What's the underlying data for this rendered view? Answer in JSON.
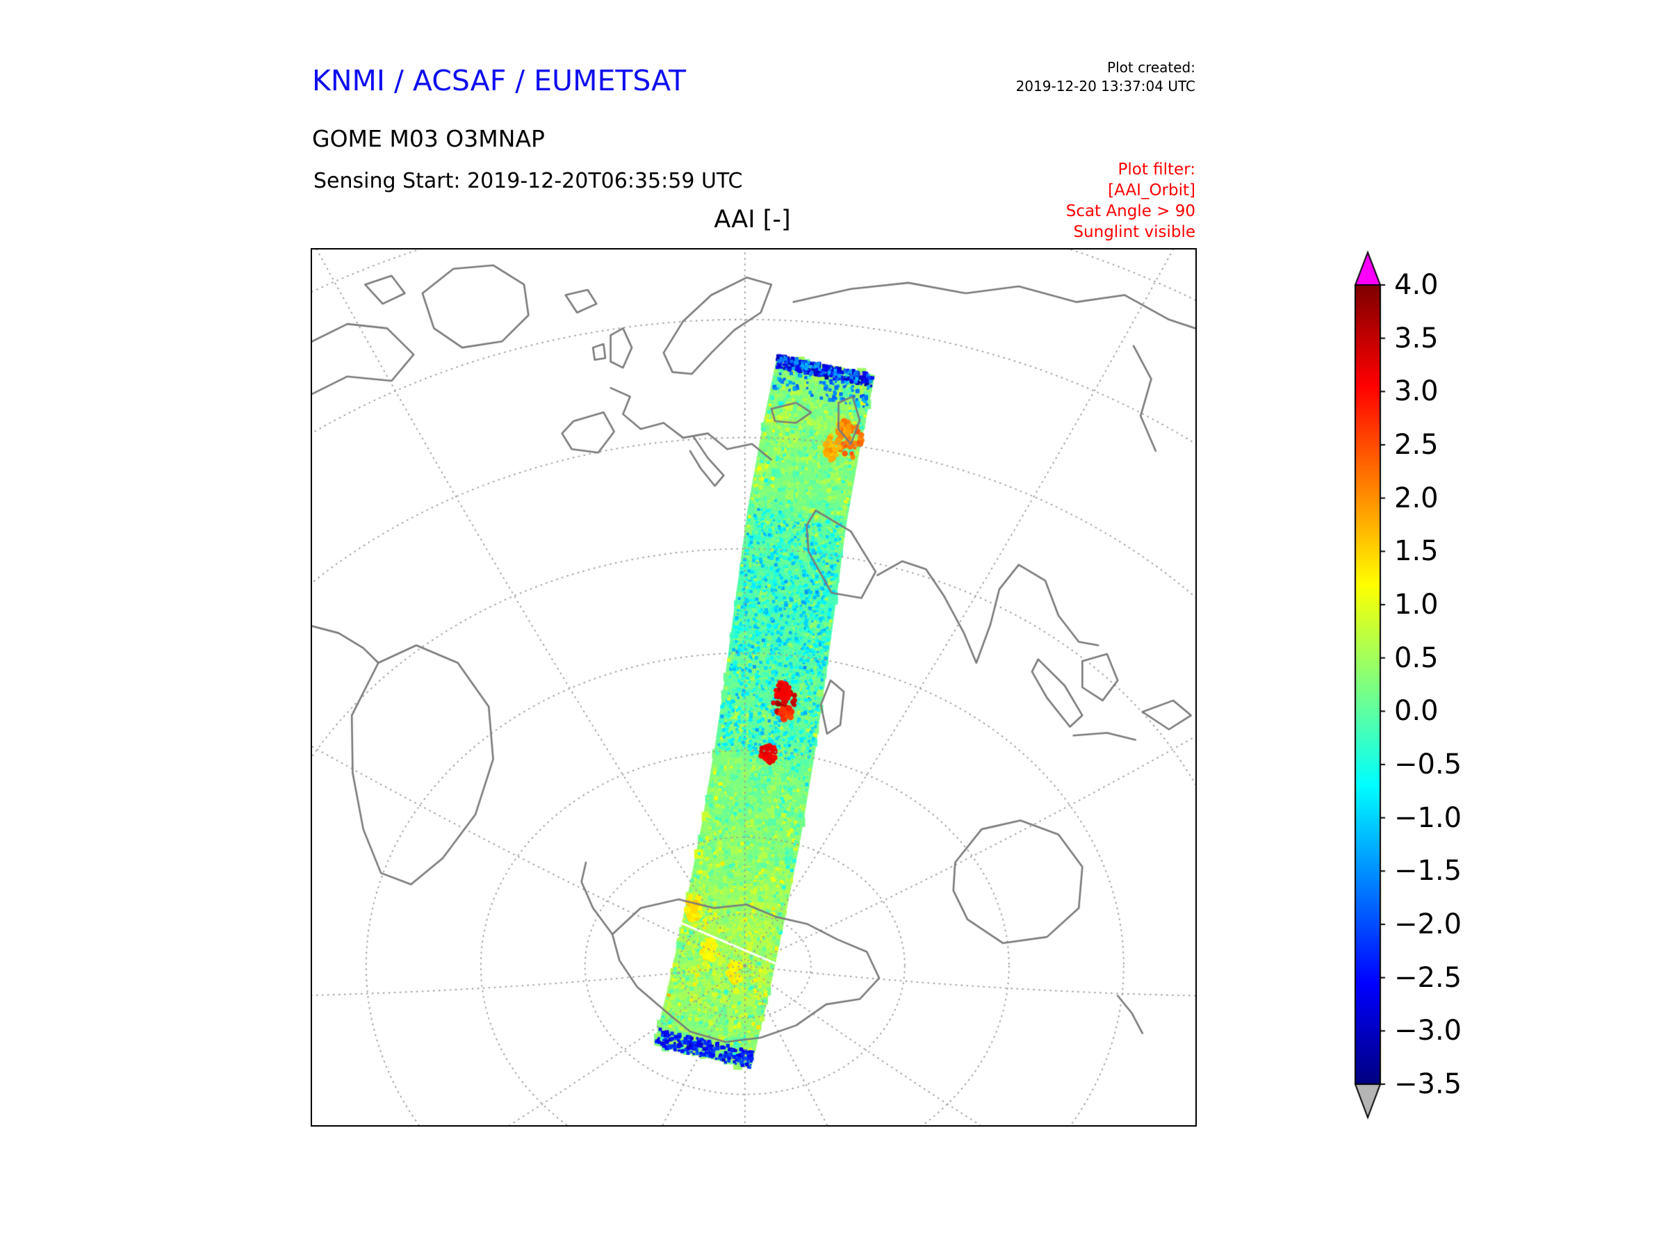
{
  "page": {
    "background": "#ffffff"
  },
  "header": {
    "agency": "KNMI / ACSAF / EUMETSAT",
    "agency_color": "#0e0ef0",
    "plot_created_label": "Plot created:",
    "plot_created_value": "2019-12-20 13:37:04 UTC",
    "product": "GOME M03 O3MNAP",
    "sensing_start": "Sensing Start: 2019-12-20T06:35:59 UTC",
    "filter": {
      "color": "#ff0000",
      "lines": [
        "Plot filter:",
        "[AAI_Orbit]",
        "Scat Angle > 90",
        "Sunglint visible"
      ]
    }
  },
  "chart_data": {
    "type": "heatmap",
    "title": "AAI [-]",
    "projection": "perspective globe centered near Africa / South Atlantic",
    "grid": true,
    "colorbar": {
      "orientation": "vertical",
      "vmin": -3.5,
      "vmax": 4.0,
      "tick_step": 0.5,
      "ticks": [
        4.0,
        3.5,
        3.0,
        2.5,
        2.0,
        1.5,
        1.0,
        0.5,
        0.0,
        -0.5,
        -1.0,
        -1.5,
        -2.0,
        -2.5,
        -3.0,
        -3.5
      ],
      "tick_labels": [
        "4.0",
        "3.5",
        "3.0",
        "2.5",
        "2.0",
        "1.5",
        "1.0",
        "0.5",
        "0.0",
        "−0.5",
        "−1.0",
        "−1.5",
        "−2.0",
        "−2.5",
        "−3.0",
        "−3.5"
      ],
      "colormap": "jet",
      "over_color": "#ff00ff",
      "under_color": "#b5b5b5"
    },
    "swath": {
      "description": "Single descending GOME-2 orbit swath of Absorbing Aerosol Index, from ~55N over eastern Europe south across eastern Africa to Antarctica; mostly -0.5..0.5 (teal/green), red aerosol plumes near southeast Africa, orange patch over eastern Europe, dark blue terminator edges at both ends",
      "centerline": [
        [
          0.582,
          0.132
        ],
        [
          0.565,
          0.215
        ],
        [
          0.549,
          0.305
        ],
        [
          0.537,
          0.395
        ],
        [
          0.525,
          0.485
        ],
        [
          0.512,
          0.575
        ],
        [
          0.497,
          0.665
        ],
        [
          0.48,
          0.752
        ],
        [
          0.462,
          0.838
        ],
        [
          0.442,
          0.922
        ]
      ],
      "half_width": 0.0565,
      "base_values": [
        0.3,
        0.35,
        0.1,
        -0.1,
        0.0,
        0.15,
        0.3,
        0.5,
        0.55,
        0.25
      ],
      "noise_sigma": 0.7,
      "speckle_count": 4200,
      "blotch_count": 1400,
      "blue_band": {
        "u0": 0.22,
        "u1": 0.56,
        "bias": -0.9,
        "count": 850
      },
      "features": [
        {
          "u": 0.103,
          "v": -0.8,
          "r": 20,
          "value": 2.2,
          "note": "orange patch over eastern Europe"
        },
        {
          "u": 0.12,
          "v": -0.45,
          "r": 12,
          "value": 1.8
        },
        {
          "u": 0.09,
          "v": -0.6,
          "r": 9,
          "value": 2.0
        },
        {
          "u": 0.48,
          "v": -0.25,
          "r": 16,
          "value": 3.5,
          "note": "red aerosol plume, southeast Africa"
        },
        {
          "u": 0.465,
          "v": -0.18,
          "r": 10,
          "value": 3.1
        },
        {
          "u": 0.495,
          "v": -0.32,
          "r": 8,
          "value": 2.7
        },
        {
          "u": 0.555,
          "v": -0.07,
          "r": 11,
          "value": 3.2,
          "note": "second red spot"
        },
        {
          "u": 0.79,
          "v": 0.83,
          "r": 13,
          "value": 1.4,
          "note": "yellow patch near Antarctica"
        },
        {
          "u": 0.845,
          "v": 0.35,
          "r": 12,
          "value": 1.2
        },
        {
          "u": 0.87,
          "v": -0.25,
          "r": 11,
          "value": 1.3
        }
      ],
      "edge_bands": [
        {
          "u0": 0.0,
          "u1": 0.018,
          "value": -2.8,
          "count": 300,
          "note": "dark blue terminator at northern end"
        },
        {
          "u0": 0.0,
          "u1": 0.05,
          "value": -1.6,
          "count": 160
        },
        {
          "u0": 0.975,
          "u1": 1.0,
          "value": -2.4,
          "count": 260,
          "note": "blue southern edge"
        }
      ],
      "gap_line": {
        "from_u": 0.845,
        "to_u": 0.815,
        "color": "#ffffff",
        "note": "white missing-data streak near Antarctica"
      }
    }
  },
  "map": {
    "border_color": "#000000",
    "coastline_color": "#7a7a7a",
    "graticule_color": "#999999"
  }
}
